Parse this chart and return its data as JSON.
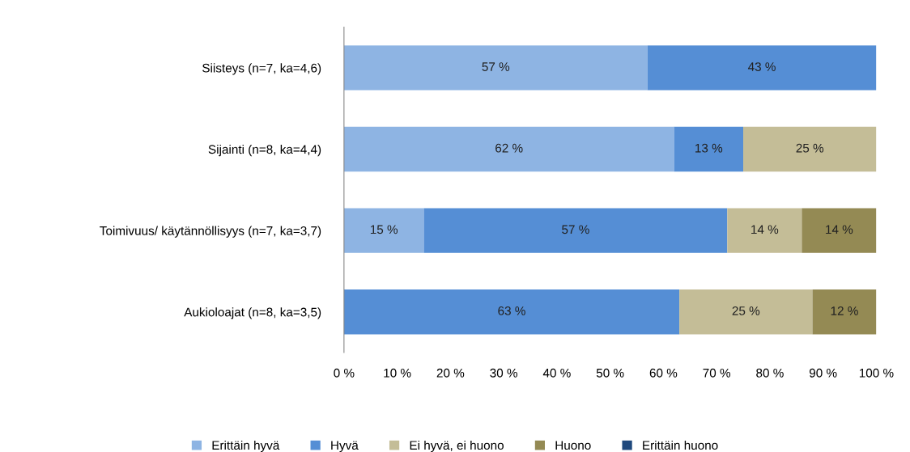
{
  "chart_data": {
    "type": "bar",
    "orientation": "horizontal",
    "stacked": true,
    "categories": [
      "Siisteys (n=7, ka=4,6)",
      "Sijainti (n=8, ka=4,4)",
      "Toimivuus/ käytännöllisyys (n=7, ka=3,7)",
      "Aukioloajat (n=8, ka=3,5)"
    ],
    "series": [
      {
        "name": "Erittäin hyvä",
        "color": "#8eb4e3",
        "values": [
          57,
          62,
          15,
          null
        ],
        "value_labels": [
          "57 %",
          "62 %",
          "15 %",
          null
        ]
      },
      {
        "name": "Hyvä",
        "color": "#558ed5",
        "values": [
          43,
          13,
          57,
          63
        ],
        "value_labels": [
          "43 %",
          "13 %",
          "57 %",
          "63 %"
        ]
      },
      {
        "name": "Ei hyvä, ei huono",
        "color": "#c4bd97",
        "values": [
          null,
          25,
          14,
          25
        ],
        "value_labels": [
          null,
          "25 %",
          "14 %",
          "25 %"
        ]
      },
      {
        "name": "Huono",
        "color": "#948a54",
        "values": [
          null,
          null,
          14,
          12
        ],
        "value_labels": [
          null,
          null,
          "14 %",
          "12 %"
        ]
      },
      {
        "name": "Erittäin huono",
        "color": "#1f497d",
        "values": [
          null,
          null,
          null,
          null
        ]
      }
    ],
    "xlim": [
      0,
      100
    ],
    "xticks": [
      {
        "value": 0,
        "label": "0 %"
      },
      {
        "value": 10,
        "label": "10 %"
      },
      {
        "value": 20,
        "label": "20 %"
      },
      {
        "value": 30,
        "label": "30 %"
      },
      {
        "value": 40,
        "label": "40 %"
      },
      {
        "value": 50,
        "label": "50 %"
      },
      {
        "value": 60,
        "label": "60 %"
      },
      {
        "value": 70,
        "label": "70 %"
      },
      {
        "value": 80,
        "label": "80 %"
      },
      {
        "value": 90,
        "label": "90 %"
      },
      {
        "value": 100,
        "label": "100 %"
      }
    ],
    "grid": false,
    "legend": "bottom"
  }
}
